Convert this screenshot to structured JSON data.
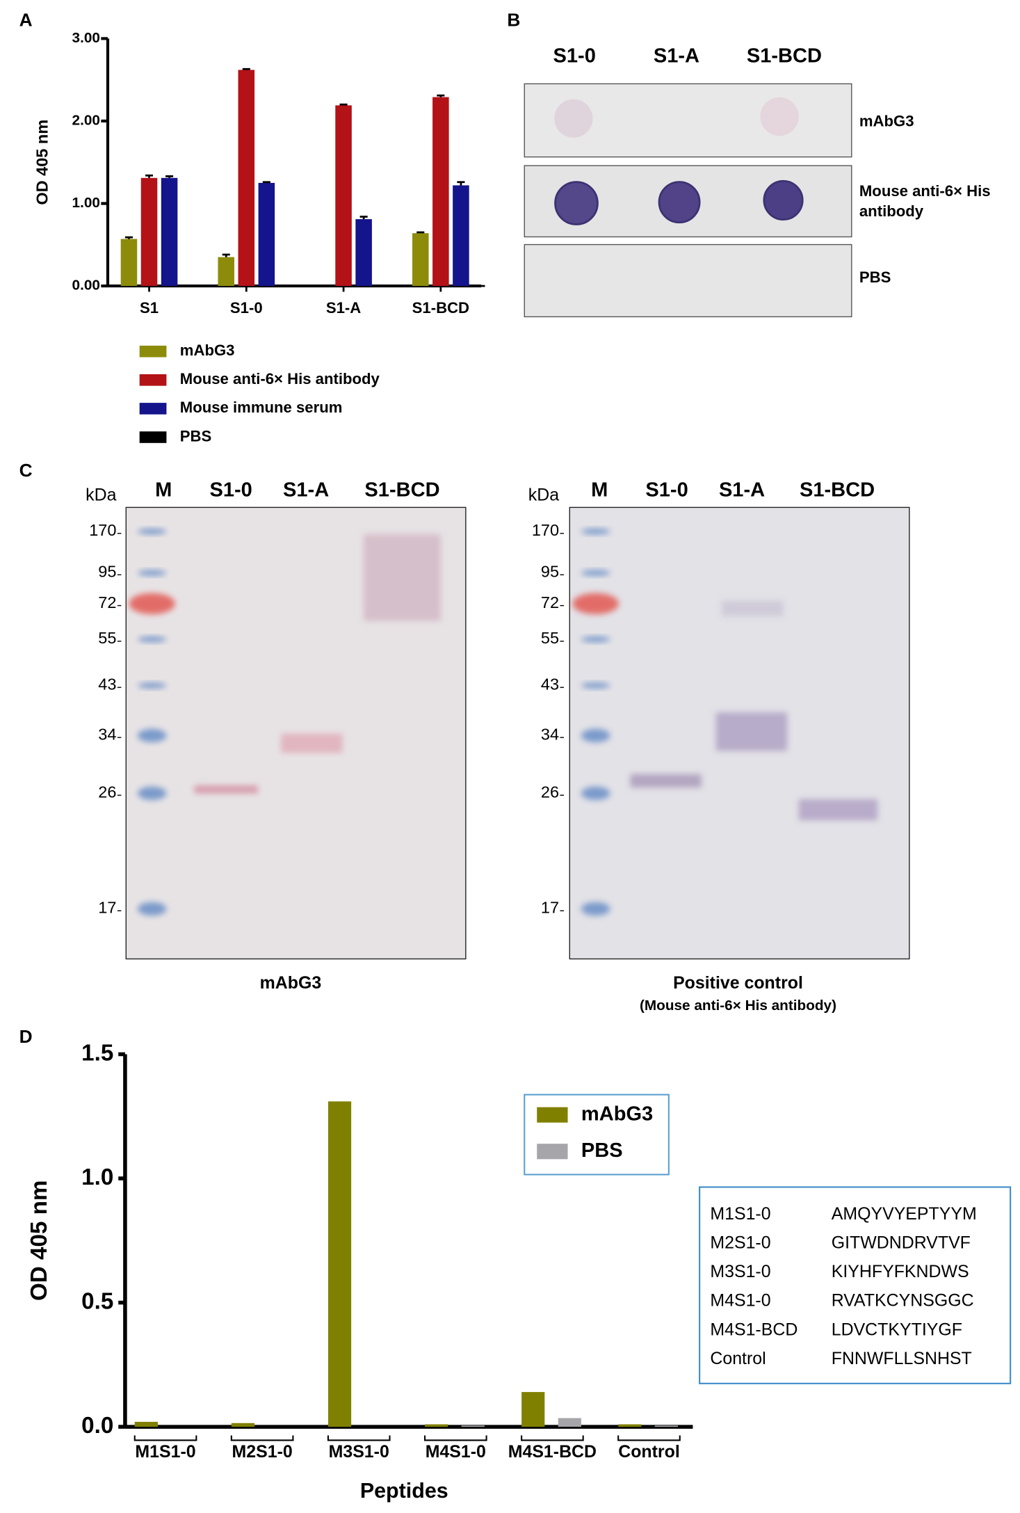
{
  "panel_labels": [
    "A",
    "B",
    "C",
    "D"
  ],
  "chart_data": [
    {
      "type": "bar",
      "y_label": "OD 405 nm",
      "categories": [
        "S1",
        "S1-0",
        "S1-A",
        "S1-BCD"
      ],
      "ylim": [
        0,
        3
      ],
      "yticks": [
        {
          "value": 0,
          "label": "0.00"
        },
        {
          "value": 1,
          "label": "1.00"
        },
        {
          "value": 2,
          "label": "2.00"
        },
        {
          "value": 3,
          "label": "3.00"
        }
      ],
      "series": [
        {
          "name": "mAbG3",
          "color": "#8c8c0a",
          "values": [
            0.57,
            0.35,
            0,
            0.64
          ],
          "errors": [
            0.02,
            0.03,
            0,
            0.01
          ]
        },
        {
          "name": "Mouse anti-6× His antibody",
          "color": "#b31217",
          "values": [
            1.31,
            2.62,
            2.19,
            2.29
          ],
          "errors": [
            0.03,
            0.01,
            0.01,
            0.02
          ]
        },
        {
          "name": "Mouse immune serum",
          "color": "#14148c",
          "values": [
            1.31,
            1.25,
            0.81,
            1.22
          ],
          "errors": [
            0.02,
            0.01,
            0.03,
            0.04
          ]
        },
        {
          "name": "PBS",
          "color": "#000000",
          "values": [
            0,
            0,
            0,
            0
          ],
          "errors": [
            0,
            0,
            0,
            0
          ]
        }
      ]
    },
    {
      "type": "bar",
      "y_label": "OD 405 nm",
      "x_label": "Peptides",
      "categories": [
        "M1S1-0",
        "M2S1-0",
        "M3S1-0",
        "M4S1-0",
        "M4S1-BCD",
        "Control"
      ],
      "ylim": [
        0,
        1.5
      ],
      "yticks": [
        {
          "value": 0,
          "label": "0.0"
        },
        0.5,
        {
          "value": 1,
          "label": "1.0"
        },
        1.5
      ],
      "legend": "upper right",
      "series": [
        {
          "name": "mAbG3",
          "color": "#808000",
          "values": [
            0.02,
            0.015,
            1.31,
            0.01,
            0.14,
            0.01
          ]
        },
        {
          "name": "PBS",
          "color": "#a5a5aa",
          "values": [
            0,
            0,
            0,
            0.005,
            0.035,
            0.005
          ]
        }
      ]
    }
  ],
  "dot_blot": {
    "columns": [
      "S1-0",
      "S1-A",
      "S1-BCD"
    ],
    "rows": [
      [
        "mAbG3"
      ],
      [
        "Mouse anti-6× His",
        "antibody"
      ],
      [
        "PBS"
      ]
    ]
  },
  "western_blots": [
    {
      "unit": "kDa",
      "lanes": [
        "M",
        "S1-0",
        "S1-A",
        "S1-BCD"
      ],
      "markers": [
        170,
        95,
        72,
        55,
        43,
        34,
        26,
        17
      ],
      "caption": [
        "mAbG3"
      ]
    },
    {
      "unit": "kDa",
      "lanes": [
        "M",
        "S1-0",
        "S1-A",
        "S1-BCD"
      ],
      "markers": [
        170,
        95,
        72,
        55,
        43,
        34,
        26,
        17
      ],
      "caption": [
        "Positive control",
        "(Mouse anti-6× His antibody)"
      ]
    }
  ],
  "peptide_table": {
    "rows": [
      [
        "M1S1-0",
        "AMQYVYEPTYYM"
      ],
      [
        "M2S1-0",
        "GITWDNDRVTVF"
      ],
      [
        "M3S1-0",
        "KIYHFYFKNDWS"
      ],
      [
        "M4S1-0",
        "RVATKCYNSGGC"
      ],
      [
        "M4S1-BCD",
        "LDVCTKYTIYGF"
      ],
      [
        "Control",
        "FNNWFLLSNHST"
      ]
    ]
  }
}
